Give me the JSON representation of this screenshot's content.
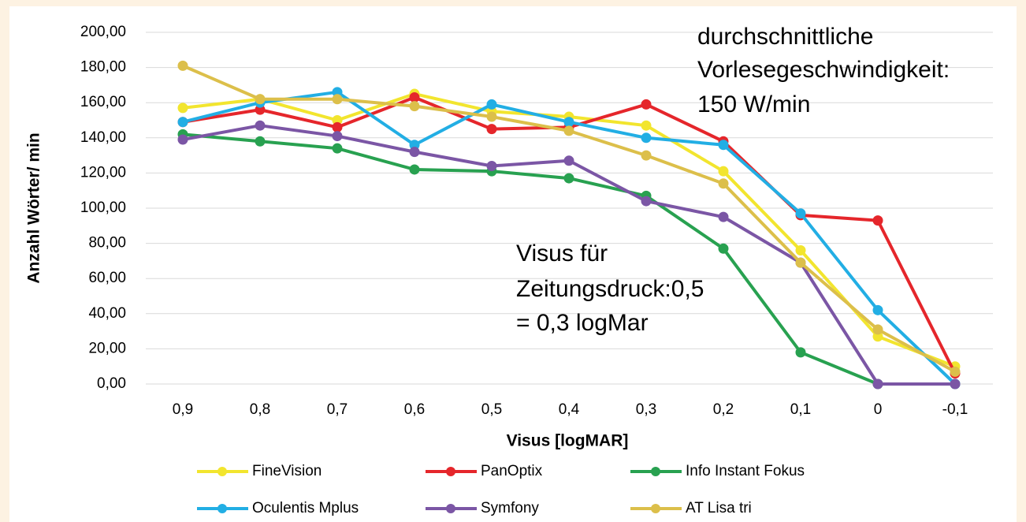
{
  "chart_data": {
    "type": "line",
    "y_label": "Anzahl Wörter/ min",
    "x_label": "Visus [logMAR]",
    "categories": [
      "0,9",
      "0,8",
      "0,7",
      "0,6",
      "0,5",
      "0,4",
      "0,3",
      "0,2",
      "0,1",
      "0",
      "-0,1"
    ],
    "series": [
      {
        "name": "FineVision",
        "color": "#f2e52e",
        "values": [
          157,
          162,
          150,
          165,
          155,
          152,
          147,
          121,
          76,
          27,
          10
        ]
      },
      {
        "name": "PanOptix",
        "color": "#e5262b",
        "values": [
          149,
          156,
          146,
          163,
          145,
          146,
          159,
          138,
          96,
          93,
          6
        ]
      },
      {
        "name": "Info Instant Fokus",
        "color": "#28a150",
        "values": [
          142,
          138,
          134,
          122,
          121,
          117,
          107,
          77,
          18,
          0,
          0
        ]
      },
      {
        "name": "Oculentis Mplus",
        "color": "#22aee4",
        "values": [
          149,
          160,
          166,
          136,
          159,
          149,
          140,
          136,
          97,
          42,
          0
        ]
      },
      {
        "name": "Symfony",
        "color": "#7b56a5",
        "values": [
          139,
          147,
          141,
          132,
          124,
          127,
          104,
          95,
          69,
          0,
          0
        ]
      },
      {
        "name": "AT Lisa tri",
        "color": "#dcbf4a",
        "values": [
          181,
          162,
          162,
          158,
          152,
          144,
          130,
          114,
          69,
          31,
          7
        ]
      }
    ],
    "ylim": [
      0,
      200
    ],
    "yticks": [
      {
        "value": 0,
        "label": "0,00"
      },
      {
        "value": 20,
        "label": "20,00"
      },
      {
        "value": 40,
        "label": "40,00"
      },
      {
        "value": 60,
        "label": "60,00"
      },
      {
        "value": 80,
        "label": "80,00"
      },
      {
        "value": 100,
        "label": "100,00"
      },
      {
        "value": 120,
        "label": "120,00"
      },
      {
        "value": 140,
        "label": "140,00"
      },
      {
        "value": 160,
        "label": "160,00"
      },
      {
        "value": 180,
        "label": "180,00"
      },
      {
        "value": 200,
        "label": "200,00"
      }
    ],
    "grid": true,
    "annotations": [
      [
        "durchschnittliche",
        "Vorlesegeschwindigkeit:",
        "150 W/min"
      ],
      [
        "Visus für",
        "Zeitungsdruck:0,5",
        "= 0,3 logMar"
      ]
    ]
  }
}
